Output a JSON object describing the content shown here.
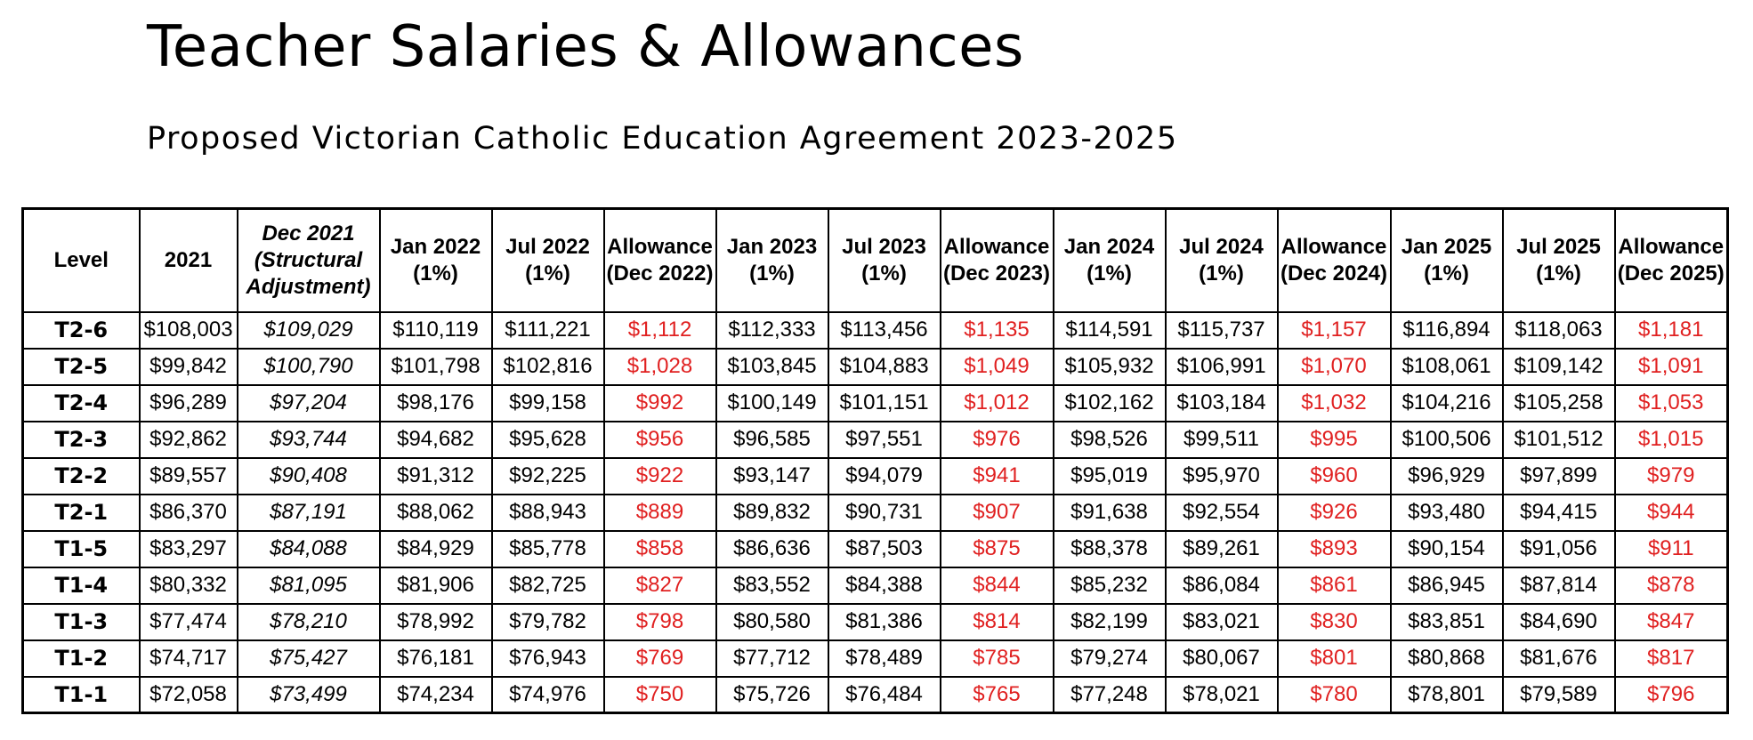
{
  "title": "Teacher Salaries & Allowances",
  "subtitle": "Proposed Victorian Catholic Education Agreement 2023-2025",
  "colors": {
    "allowance": "#e02020",
    "text": "#000000",
    "border": "#000000"
  },
  "table": {
    "headers": [
      {
        "line1": "Level",
        "line2": "",
        "line3": ""
      },
      {
        "line1": "2021",
        "line2": "",
        "line3": ""
      },
      {
        "line1": "Dec 2021",
        "line2": "(Structural",
        "line3": "Adjustment)"
      },
      {
        "line1": "Jan 2022",
        "line2": "(1%)",
        "line3": ""
      },
      {
        "line1": "Jul 2022",
        "line2": "(1%)",
        "line3": ""
      },
      {
        "line1": "Allowance",
        "line2": "(Dec 2022)",
        "line3": ""
      },
      {
        "line1": "Jan 2023",
        "line2": "(1%)",
        "line3": ""
      },
      {
        "line1": "Jul 2023",
        "line2": "(1%)",
        "line3": ""
      },
      {
        "line1": "Allowance",
        "line2": "(Dec 2023)",
        "line3": ""
      },
      {
        "line1": "Jan 2024",
        "line2": "(1%)",
        "line3": ""
      },
      {
        "line1": "Jul 2024",
        "line2": "(1%)",
        "line3": ""
      },
      {
        "line1": "Allowance",
        "line2": "(Dec 2024)",
        "line3": ""
      },
      {
        "line1": "Jan 2025",
        "line2": "(1%)",
        "line3": ""
      },
      {
        "line1": "Jul 2025",
        "line2": "(1%)",
        "line3": ""
      },
      {
        "line1": "Allowance",
        "line2": "(Dec 2025)",
        "line3": ""
      }
    ],
    "rows": [
      [
        "T2-6",
        "$108,003",
        "$109,029",
        "$110,119",
        "$111,221",
        "$1,112",
        "$112,333",
        "$113,456",
        "$1,135",
        "$114,591",
        "$115,737",
        "$1,157",
        "$116,894",
        "$118,063",
        "$1,181"
      ],
      [
        "T2-5",
        "$99,842",
        "$100,790",
        "$101,798",
        "$102,816",
        "$1,028",
        "$103,845",
        "$104,883",
        "$1,049",
        "$105,932",
        "$106,991",
        "$1,070",
        "$108,061",
        "$109,142",
        "$1,091"
      ],
      [
        "T2-4",
        "$96,289",
        "$97,204",
        "$98,176",
        "$99,158",
        "$992",
        "$100,149",
        "$101,151",
        "$1,012",
        "$102,162",
        "$103,184",
        "$1,032",
        "$104,216",
        "$105,258",
        "$1,053"
      ],
      [
        "T2-3",
        "$92,862",
        "$93,744",
        "$94,682",
        "$95,628",
        "$956",
        "$96,585",
        "$97,551",
        "$976",
        "$98,526",
        "$99,511",
        "$995",
        "$100,506",
        "$101,512",
        "$1,015"
      ],
      [
        "T2-2",
        "$89,557",
        "$90,408",
        "$91,312",
        "$92,225",
        "$922",
        "$93,147",
        "$94,079",
        "$941",
        "$95,019",
        "$95,970",
        "$960",
        "$96,929",
        "$97,899",
        "$979"
      ],
      [
        "T2-1",
        "$86,370",
        "$87,191",
        "$88,062",
        "$88,943",
        "$889",
        "$89,832",
        "$90,731",
        "$907",
        "$91,638",
        "$92,554",
        "$926",
        "$93,480",
        "$94,415",
        "$944"
      ],
      [
        "T1-5",
        "$83,297",
        "$84,088",
        "$84,929",
        "$85,778",
        "$858",
        "$86,636",
        "$87,503",
        "$875",
        "$88,378",
        "$89,261",
        "$893",
        "$90,154",
        "$91,056",
        "$911"
      ],
      [
        "T1-4",
        "$80,332",
        "$81,095",
        "$81,906",
        "$82,725",
        "$827",
        "$83,552",
        "$84,388",
        "$844",
        "$85,232",
        "$86,084",
        "$861",
        "$86,945",
        "$87,814",
        "$878"
      ],
      [
        "T1-3",
        "$77,474",
        "$78,210",
        "$78,992",
        "$79,782",
        "$798",
        "$80,580",
        "$81,386",
        "$814",
        "$82,199",
        "$83,021",
        "$830",
        "$83,851",
        "$84,690",
        "$847"
      ],
      [
        "T1-2",
        "$74,717",
        "$75,427",
        "$76,181",
        "$76,943",
        "$769",
        "$77,712",
        "$78,489",
        "$785",
        "$79,274",
        "$80,067",
        "$801",
        "$80,868",
        "$81,676",
        "$817"
      ],
      [
        "T1-1",
        "$72,058",
        "$73,499",
        "$74,234",
        "$74,976",
        "$750",
        "$75,726",
        "$76,484",
        "$765",
        "$77,248",
        "$78,021",
        "$780",
        "$78,801",
        "$79,589",
        "$796"
      ]
    ]
  }
}
